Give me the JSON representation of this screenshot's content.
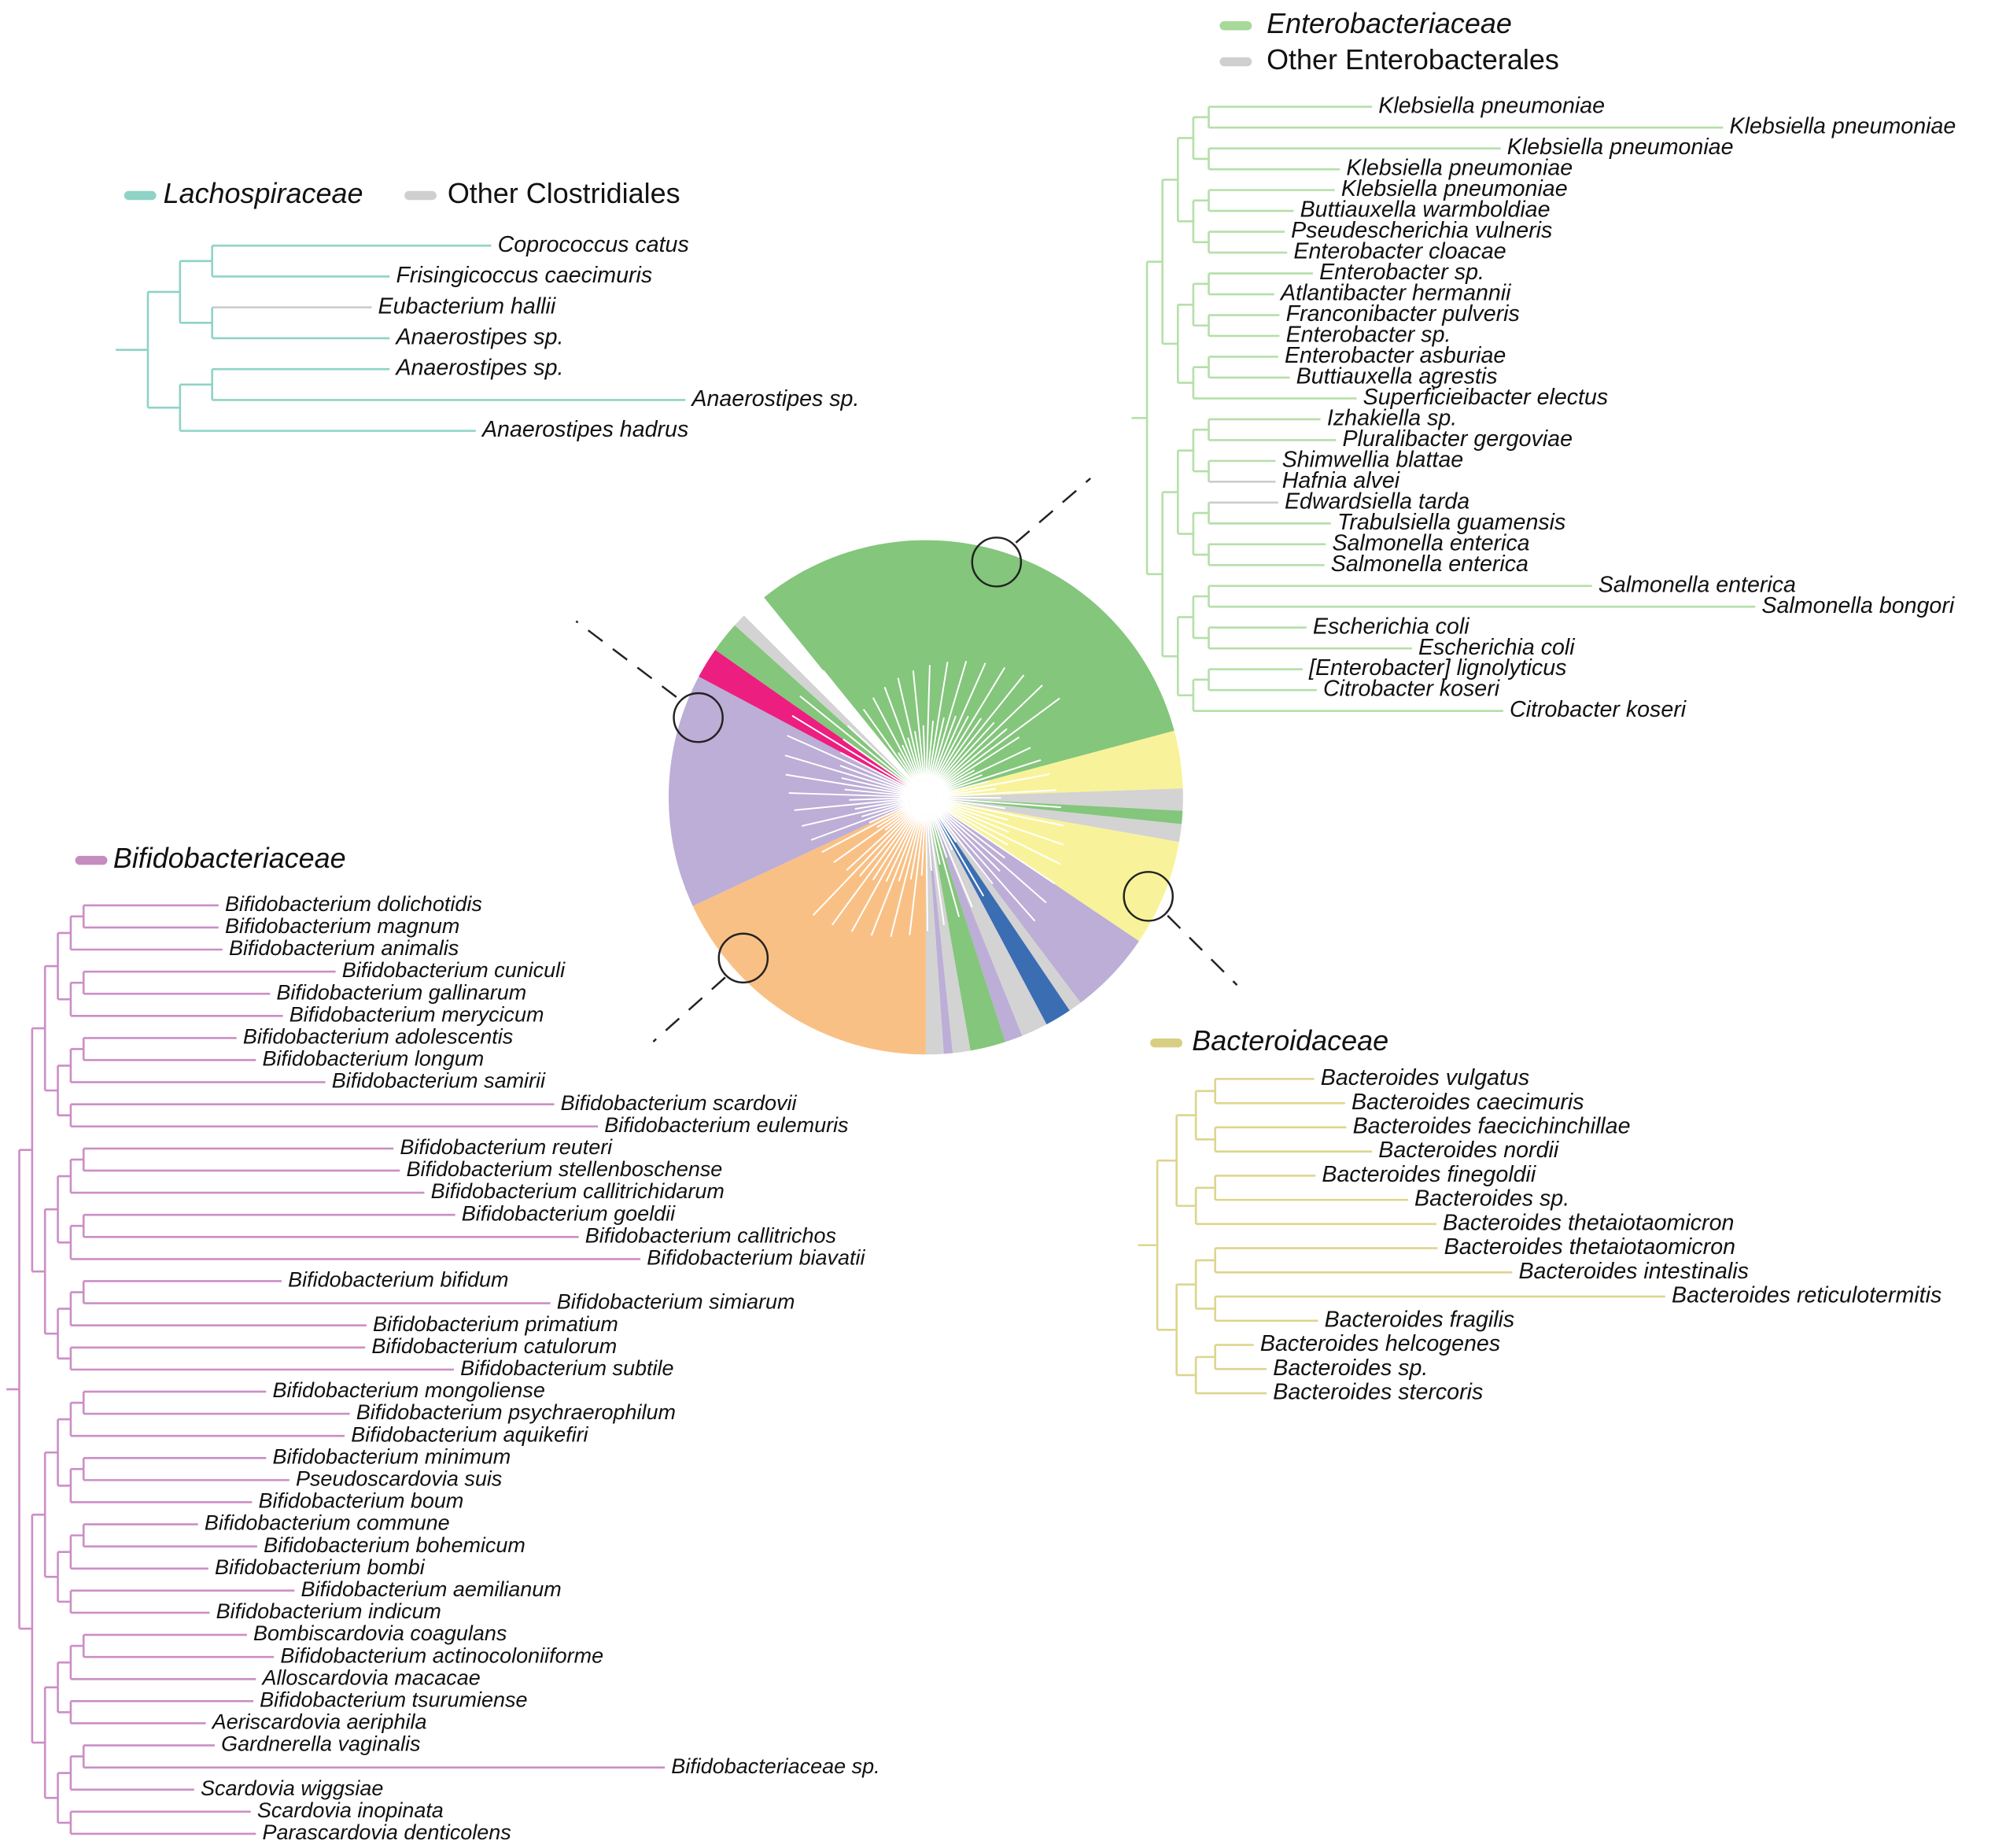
{
  "enterobacterales": {
    "legend": [
      "Enterobacteriaceae",
      "Other Enterobacterales"
    ],
    "leaves": [
      "Klebsiella pneumoniae",
      "Klebsiella pneumoniae",
      "Klebsiella pneumoniae",
      "Klebsiella pneumoniae",
      "Klebsiella pneumoniae",
      "Buttiauxella warmboldiae",
      "Pseudescherichia vulneris",
      "Enterobacter cloacae",
      "Enterobacter sp.",
      "Atlantibacter hermannii",
      "Franconibacter pulveris",
      "Enterobacter sp.",
      "Enterobacter asburiae",
      "Buttiauxella agrestis",
      "Superficieibacter electus",
      "Izhakiella sp.",
      "Pluralibacter gergoviae",
      "Shimwellia blattae",
      "Hafnia alvei",
      "Edwardsiella tarda",
      "Trabulsiella guamensis",
      "Salmonella enterica",
      "Salmonella enterica",
      "Salmonella enterica",
      "Salmonella bongori",
      "Escherichia coli",
      "Escherichia coli",
      "[Enterobacter] lignolyticus",
      "Citrobacter koseri",
      "Citrobacter koseri"
    ]
  },
  "clostridiales": {
    "legend": [
      "Lachospiraceae",
      "Other Clostridiales"
    ],
    "leaves": [
      "Coprococcus catus",
      "Frisingicoccus caecimuris",
      "Eubacterium hallii",
      "Anaerostipes sp.",
      "Anaerostipes sp.",
      "Anaerostipes sp.",
      "Anaerostipes hadrus"
    ]
  },
  "bifidobacteriaceae": {
    "legend": [
      "Bifidobacteriaceae"
    ],
    "leaves": [
      "Bifidobacterium dolichotidis",
      "Bifidobacterium magnum",
      "Bifidobacterium animalis",
      "Bifidobacterium cuniculi",
      "Bifidobacterium gallinarum",
      "Bifidobacterium merycicum",
      "Bifidobacterium adolescentis",
      "Bifidobacterium longum",
      "Bifidobacterium samirii",
      "Bifidobacterium scardovii",
      "Bifidobacterium eulemuris",
      "Bifidobacterium reuteri",
      "Bifidobacterium stellenboschense",
      "Bifidobacterium callitrichidarum",
      "Bifidobacterium goeldii",
      "Bifidobacterium callitrichos",
      "Bifidobacterium biavatii",
      "Bifidobacterium bifidum",
      "Bifidobacterium simiarum",
      "Bifidobacterium primatium",
      "Bifidobacterium catulorum",
      "Bifidobacterium subtile",
      "Bifidobacterium mongoliense",
      "Bifidobacterium psychraerophilum",
      "Bifidobacterium aquikefiri",
      "Bifidobacterium minimum",
      "Pseudoscardovia suis",
      "Bifidobacterium boum",
      "Bifidobacterium commune",
      "Bifidobacterium bohemicum",
      "Bifidobacterium bombi",
      "Bifidobacterium aemilianum",
      "Bifidobacterium indicum",
      "Bombiscardovia coagulans",
      "Bifidobacterium actinocoloniiforme",
      "Alloscardovia macacae",
      "Bifidobacterium tsurumiense",
      "Aeriscardovia aeriphila",
      "Gardnerella vaginalis",
      "Bifidobacteriaceae sp.",
      "Scardovia wiggsiae",
      "Scardovia inopinata",
      "Parascardovia denticolens"
    ]
  },
  "bacteroidaceae": {
    "legend": [
      "Bacteroidaceae"
    ],
    "leaves": [
      "Bacteroides vulgatus",
      "Bacteroides caecimuris",
      "Bacteroides faecichinchillae",
      "Bacteroides nordii",
      "Bacteroides finegoldii",
      "Bacteroides sp.",
      "Bacteroides thetaiotaomicron",
      "Bacteroides thetaiotaomicron",
      "Bacteroides intestinalis",
      "Bacteroides reticulotermitis",
      "Bacteroides fragilis",
      "Bacteroides helcogenes",
      "Bacteroides sp.",
      "Bacteroides stercoris"
    ]
  }
}
